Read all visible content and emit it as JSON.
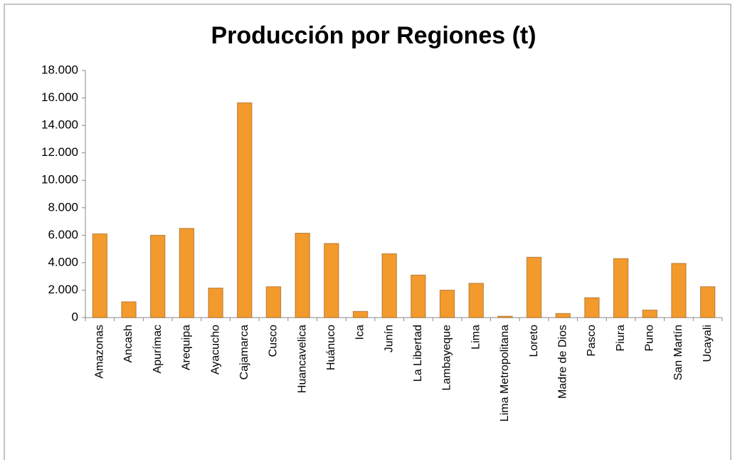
{
  "chart_data": {
    "type": "bar",
    "title": "Producción por Regiones (t)",
    "categories": [
      "Amazonas",
      "Ancash",
      "Apurímac",
      "Arequipa",
      "Ayacucho",
      "Cajamarca",
      "Cusco",
      "Huancavelica",
      "Huánuco",
      "Ica",
      "Junín",
      "La Libertad",
      "Lambayeque",
      "Lima",
      "Lima Metropolitana",
      "Loreto",
      "Madre de Dios",
      "Pasco",
      "Piura",
      "Puno",
      "San Martín",
      "Ucayali"
    ],
    "values": [
      6100,
      1150,
      6000,
      6500,
      2150,
      15650,
      2250,
      6150,
      5400,
      450,
      4650,
      3100,
      2000,
      2500,
      100,
      4400,
      300,
      1450,
      4300,
      550,
      3950,
      2250
    ],
    "color": "#f39a2c",
    "ylim": [
      0,
      18000
    ],
    "yticks": [
      0,
      {
        "value": 2000,
        "label": "2.000"
      },
      {
        "value": 4000,
        "label": "4.000"
      },
      {
        "value": 6000,
        "label": "6.000"
      },
      {
        "value": 8000,
        "label": "8.000"
      },
      {
        "value": 10000,
        "label": "10.000"
      },
      {
        "value": 12000,
        "label": "12.000"
      },
      {
        "value": 14000,
        "label": "14.000"
      },
      {
        "value": 16000,
        "label": "16.000"
      },
      {
        "value": 18000,
        "label": "18.000"
      }
    ],
    "grid": false
  }
}
